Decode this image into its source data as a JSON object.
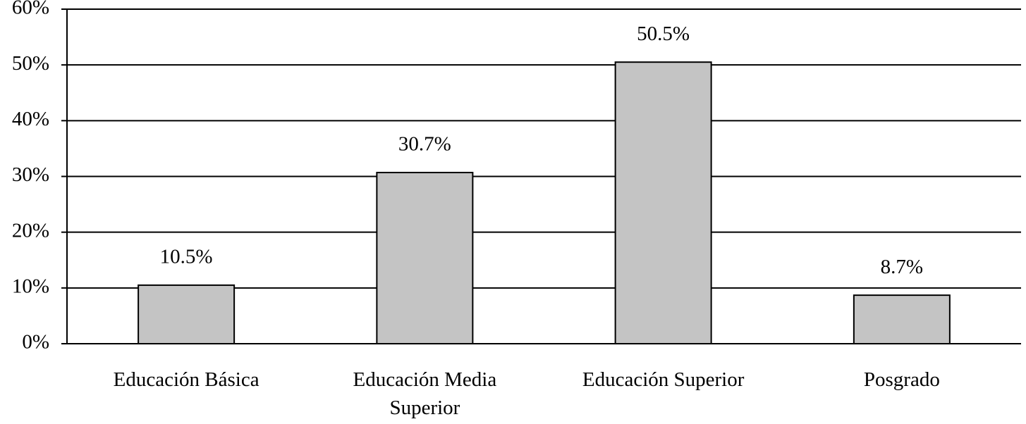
{
  "chart_data": {
    "type": "bar",
    "categories": [
      "Educación Básica",
      "Educación Media Superior",
      "Educación Superior",
      "Posgrado"
    ],
    "values": [
      10.5,
      30.7,
      50.5,
      8.7
    ],
    "value_labels": [
      "10.5%",
      "30.7%",
      "50.5%",
      "8.7%"
    ],
    "color": "#c4c4c4",
    "ylim": [
      0,
      60
    ],
    "yticks": [
      {
        "value": 0,
        "label": "0%"
      },
      {
        "value": 10,
        "label": "10%"
      },
      {
        "value": 20,
        "label": "20%"
      },
      {
        "value": 30,
        "label": "30%"
      },
      {
        "value": 40,
        "label": "40%"
      },
      {
        "value": 50,
        "label": "50%"
      },
      {
        "value": 60,
        "label": "60%"
      }
    ],
    "grid": true
  }
}
